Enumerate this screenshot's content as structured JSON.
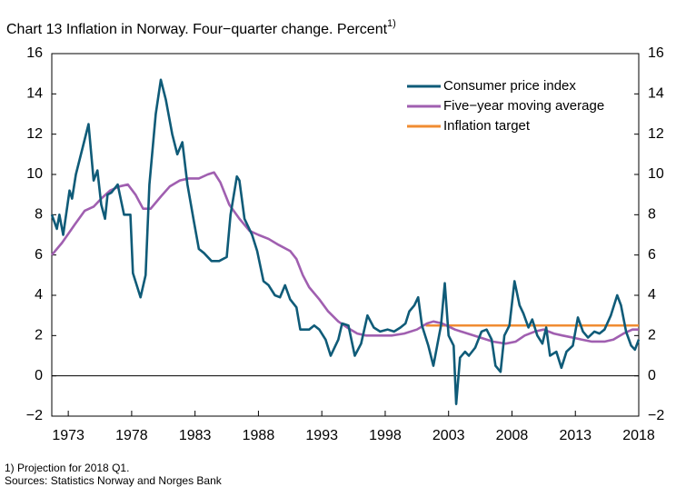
{
  "chart_data": {
    "type": "line",
    "title": "Chart 13 Inflation in Norway. Four−quarter change. Percent",
    "title_superscript": "1)",
    "footnote": "1) Projection for 2018 Q1.",
    "source": "Sources: Statistics Norway and Norges Bank",
    "xlim": [
      1971.7,
      2018.0
    ],
    "xticks": [
      1973,
      1978,
      1983,
      1988,
      1993,
      1998,
      2003,
      2008,
      2013,
      2018
    ],
    "ylim": [
      -2,
      16
    ],
    "yticks": [
      {
        "value": -2,
        "label": "−2"
      },
      0,
      2,
      4,
      6,
      8,
      10,
      12,
      14,
      16
    ],
    "y2lim": [
      -2,
      16
    ],
    "y2ticks": [
      {
        "value": -2,
        "label": "−2"
      },
      0,
      2,
      4,
      6,
      8,
      10,
      12,
      14,
      16
    ],
    "zero_line": true,
    "series": [
      {
        "name": "Consumer price index",
        "color": "#0f5b78",
        "x": [
          1971.7,
          1972.1,
          1972.3,
          1972.6,
          1973.1,
          1973.3,
          1973.6,
          1974.2,
          1974.6,
          1975.0,
          1975.3,
          1975.6,
          1975.9,
          1976.1,
          1976.4,
          1976.9,
          1977.4,
          1977.9,
          1978.1,
          1978.7,
          1979.1,
          1979.4,
          1979.9,
          1980.3,
          1980.7,
          1981.2,
          1981.6,
          1982.0,
          1982.4,
          1982.9,
          1983.3,
          1983.7,
          1984.3,
          1984.9,
          1985.5,
          1985.8,
          1986.3,
          1986.5,
          1986.9,
          1987.5,
          1987.9,
          1988.4,
          1988.8,
          1989.3,
          1989.7,
          1990.1,
          1990.5,
          1991.0,
          1991.3,
          1992.0,
          1992.4,
          1992.8,
          1993.3,
          1993.7,
          1994.3,
          1994.6,
          1995.1,
          1995.6,
          1996.1,
          1996.6,
          1997.1,
          1997.6,
          1998.2,
          1998.7,
          1999.2,
          1999.6,
          1999.9,
          2000.3,
          2000.6,
          2000.9,
          2001.4,
          2001.8,
          2002.1,
          2002.4,
          2002.7,
          2003.0,
          2003.4,
          2003.6,
          2003.9,
          2004.3,
          2004.6,
          2005.1,
          2005.6,
          2006.0,
          2006.4,
          2006.7,
          2007.1,
          2007.4,
          2007.8,
          2008.2,
          2008.6,
          2008.9,
          2009.3,
          2009.6,
          2010.0,
          2010.4,
          2010.7,
          2011.0,
          2011.5,
          2011.9,
          2012.3,
          2012.8,
          2013.2,
          2013.6,
          2014.0,
          2014.5,
          2014.9,
          2015.3,
          2015.8,
          2016.3,
          2016.6,
          2017.0,
          2017.4,
          2017.7,
          2018.0
        ],
        "values": [
          8.0,
          7.3,
          8.0,
          7.0,
          9.2,
          8.8,
          10.0,
          11.5,
          12.5,
          9.7,
          10.2,
          8.5,
          7.8,
          9.0,
          9.1,
          9.5,
          8.0,
          8.0,
          5.1,
          3.9,
          5.0,
          9.5,
          13.0,
          14.7,
          13.7,
          12.0,
          11.0,
          11.6,
          9.5,
          7.7,
          6.3,
          6.1,
          5.7,
          5.7,
          5.9,
          8.0,
          9.9,
          9.7,
          7.8,
          7.0,
          6.2,
          4.7,
          4.5,
          4.0,
          3.9,
          4.5,
          3.8,
          3.4,
          2.3,
          2.3,
          2.5,
          2.3,
          1.8,
          1.0,
          1.8,
          2.6,
          2.5,
          1.0,
          1.6,
          3.0,
          2.4,
          2.2,
          2.3,
          2.2,
          2.4,
          2.6,
          3.2,
          3.5,
          3.9,
          2.5,
          1.5,
          0.5,
          1.5,
          2.5,
          4.6,
          2.0,
          1.5,
          -1.4,
          0.9,
          1.2,
          1.0,
          1.4,
          2.2,
          2.3,
          1.8,
          0.5,
          0.2,
          2.0,
          2.5,
          4.7,
          3.5,
          3.1,
          2.4,
          2.8,
          2.0,
          1.6,
          2.4,
          1.0,
          1.2,
          0.4,
          1.2,
          1.5,
          2.9,
          2.2,
          1.9,
          2.2,
          2.1,
          2.3,
          3.0,
          4.0,
          3.5,
          2.2,
          1.5,
          1.3,
          1.8
        ]
      },
      {
        "name": "Five−year moving average",
        "color": "#a05fb0",
        "x": [
          1971.7,
          1972.5,
          1973.5,
          1974.3,
          1975.0,
          1975.6,
          1976.3,
          1977.0,
          1977.7,
          1978.3,
          1978.9,
          1979.5,
          1980.3,
          1981.0,
          1981.8,
          1982.5,
          1983.3,
          1984.0,
          1984.5,
          1985.0,
          1985.7,
          1986.5,
          1987.3,
          1988.0,
          1988.8,
          1989.6,
          1990.5,
          1991.0,
          1991.5,
          1992.0,
          1992.8,
          1993.5,
          1994.3,
          1995.0,
          1995.8,
          1996.5,
          1997.5,
          1998.5,
          1999.5,
          2000.5,
          2001.3,
          2001.8,
          2002.5,
          2003.5,
          2004.5,
          2005.5,
          2006.5,
          2007.5,
          2008.3,
          2009.0,
          2009.8,
          2010.5,
          2011.3,
          2012.0,
          2012.8,
          2013.5,
          2014.3,
          2015.3,
          2016.0,
          2016.8,
          2017.5,
          2018.0
        ],
        "values": [
          6.0,
          6.6,
          7.5,
          8.2,
          8.4,
          8.8,
          9.2,
          9.4,
          9.5,
          9.0,
          8.3,
          8.3,
          8.9,
          9.4,
          9.7,
          9.8,
          9.8,
          10.0,
          10.1,
          9.6,
          8.5,
          7.8,
          7.2,
          7.0,
          6.8,
          6.5,
          6.2,
          5.8,
          5.0,
          4.4,
          3.8,
          3.2,
          2.7,
          2.4,
          2.1,
          2.0,
          2.0,
          2.0,
          2.1,
          2.3,
          2.6,
          2.7,
          2.6,
          2.3,
          2.1,
          1.9,
          1.7,
          1.6,
          1.7,
          2.0,
          2.2,
          2.3,
          2.1,
          2.0,
          1.9,
          1.8,
          1.7,
          1.7,
          1.8,
          2.1,
          2.3,
          2.3
        ]
      },
      {
        "name": "Inflation target",
        "color": "#f08c32",
        "x": [
          2001.2,
          2018.0
        ],
        "values": [
          2.5,
          2.5
        ]
      }
    ]
  }
}
